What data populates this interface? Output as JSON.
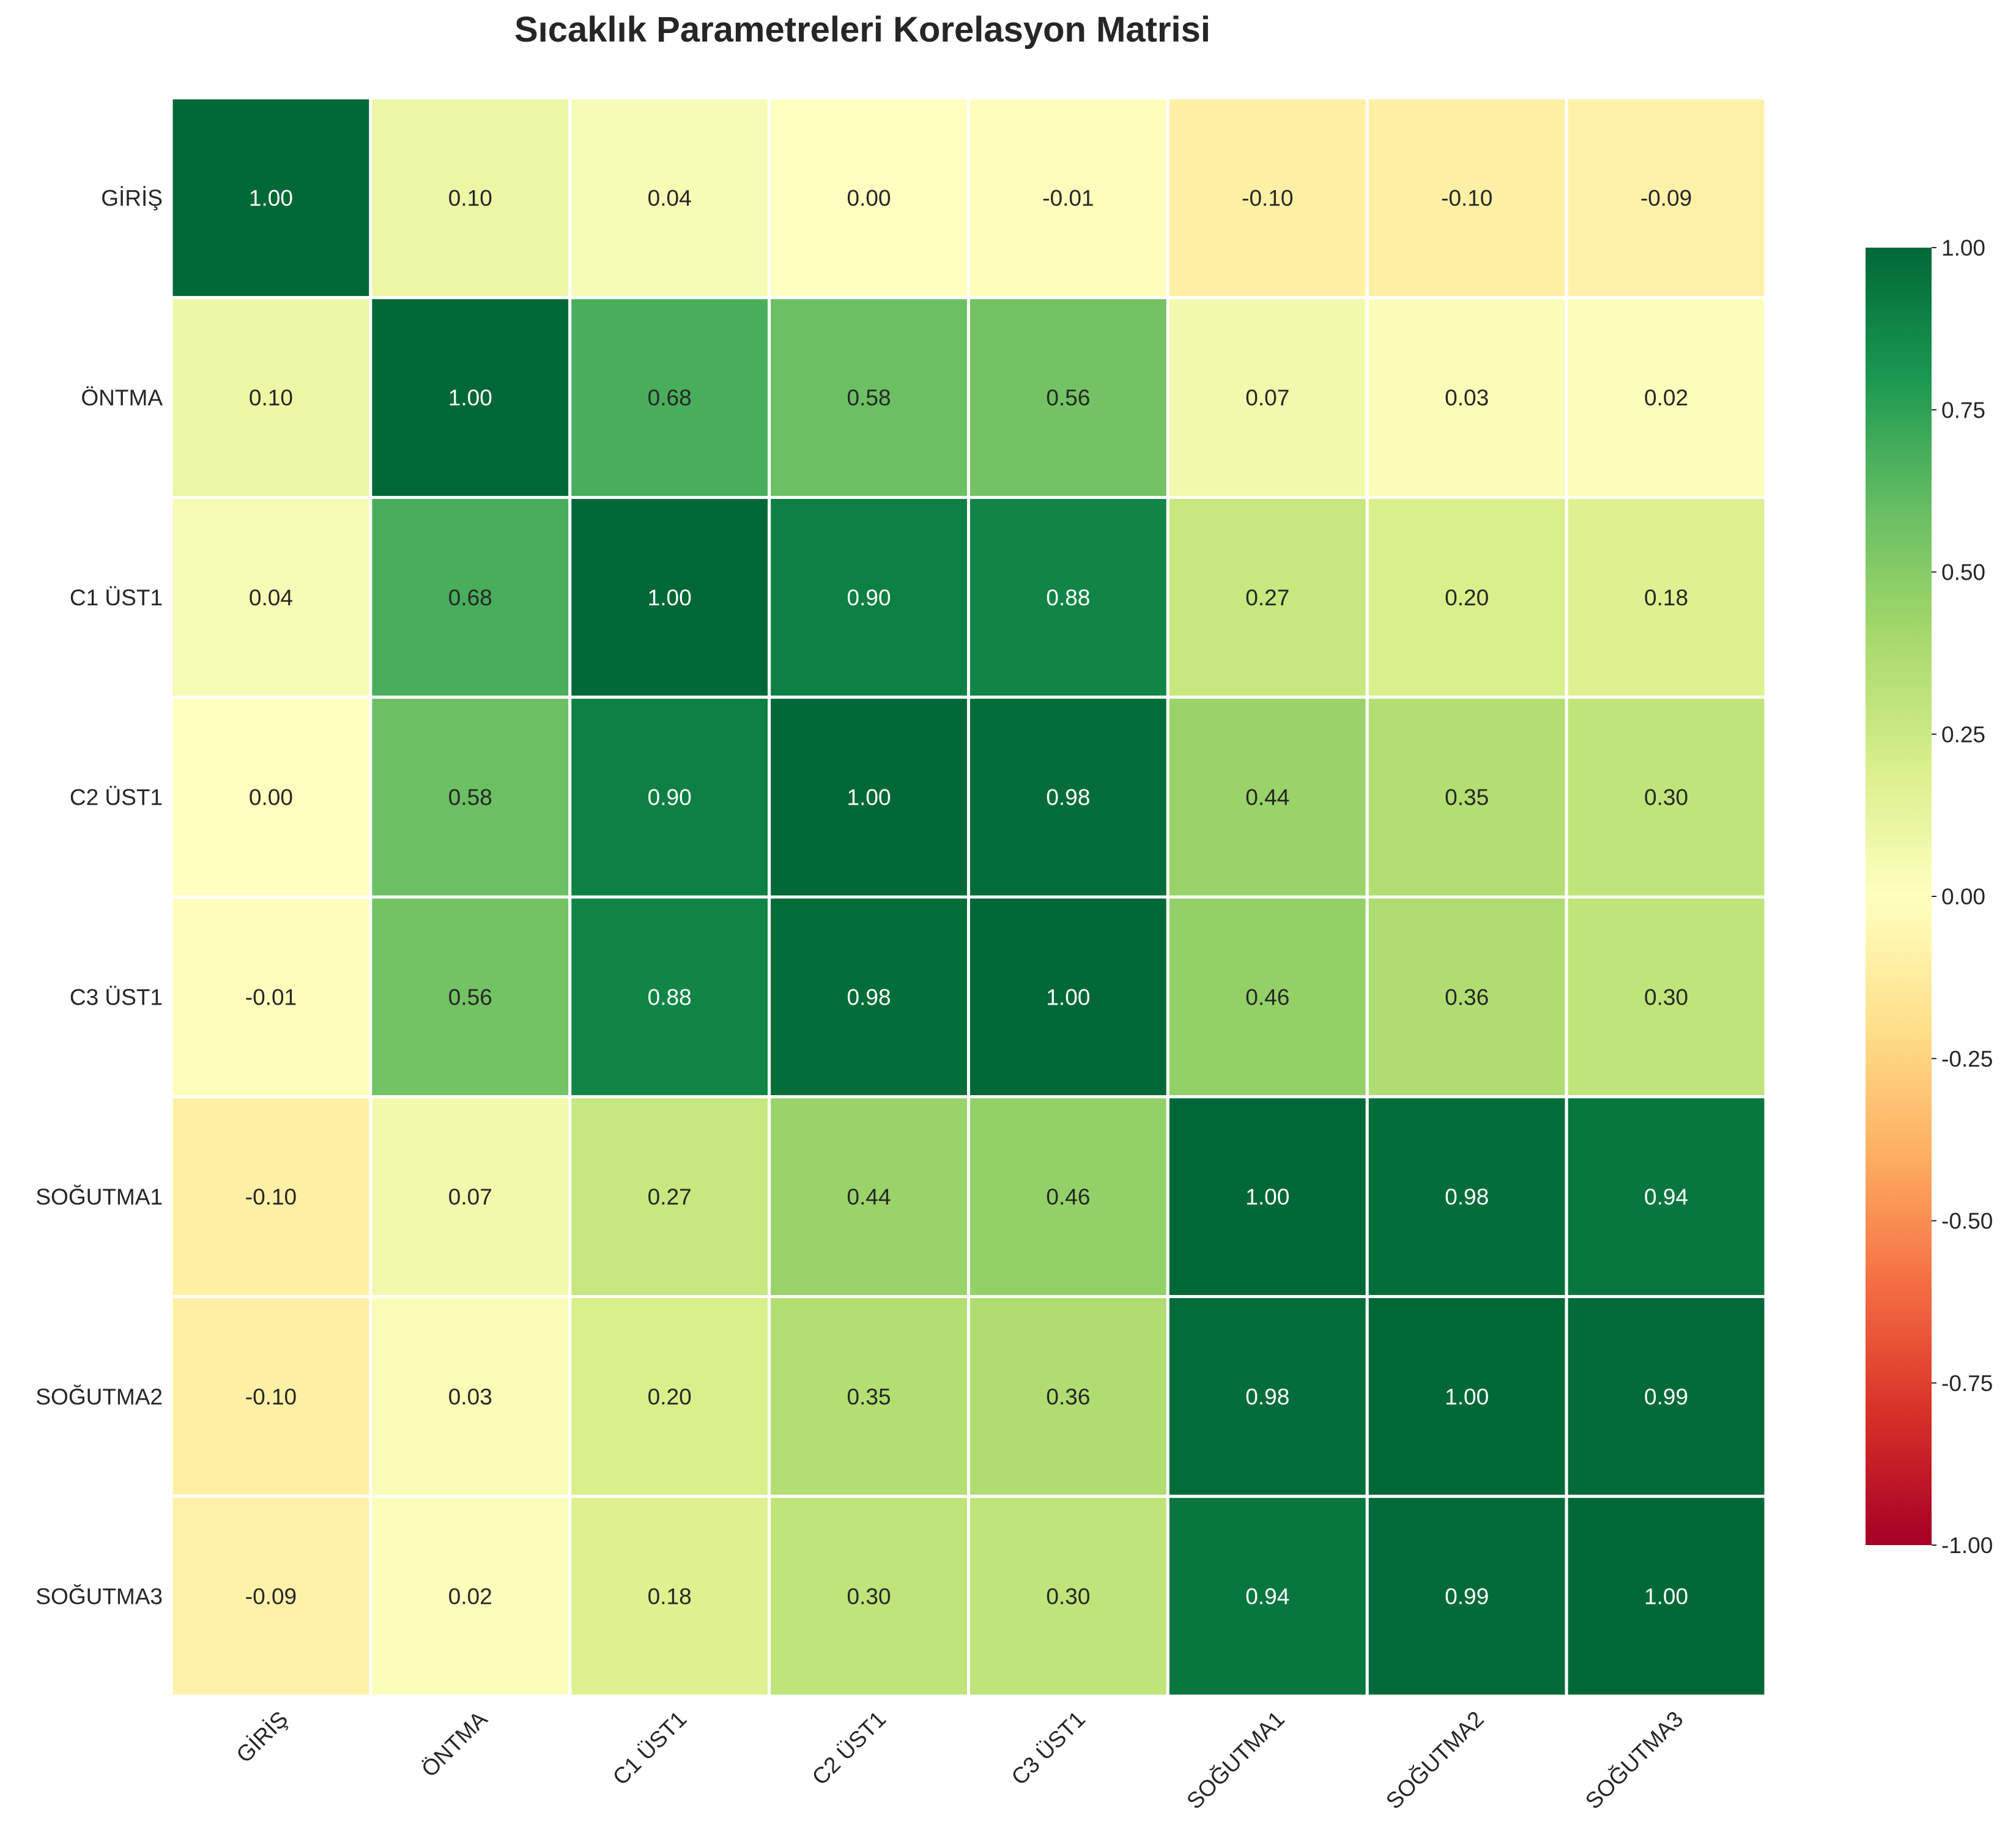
{
  "chart_data": {
    "type": "heatmap",
    "title": "Sıcaklık Parametreleri Korelasyon Matrisi",
    "xlabel": "",
    "ylabel": "",
    "row_labels": [
      "GİRİŞ",
      "ÖNTMA",
      "C1 ÜST1",
      "C2 ÜST1",
      "C3 ÜST1",
      "SOĞUTMA1",
      "SOĞUTMA2",
      "SOĞUTMA3"
    ],
    "col_labels": [
      "GİRİŞ",
      "ÖNTMA",
      "C1 ÜST1",
      "C2 ÜST1",
      "C3 ÜST1",
      "SOĞUTMA1",
      "SOĞUTMA2",
      "SOĞUTMA3"
    ],
    "values": [
      [
        1.0,
        0.1,
        0.04,
        -0.0,
        -0.01,
        -0.1,
        -0.1,
        -0.09
      ],
      [
        0.1,
        1.0,
        0.68,
        0.58,
        0.56,
        0.07,
        0.03,
        0.02
      ],
      [
        0.04,
        0.68,
        1.0,
        0.9,
        0.88,
        0.27,
        0.2,
        0.18
      ],
      [
        -0.0,
        0.58,
        0.9,
        1.0,
        0.98,
        0.44,
        0.35,
        0.3
      ],
      [
        -0.01,
        0.56,
        0.88,
        0.98,
        1.0,
        0.46,
        0.36,
        0.3
      ],
      [
        -0.1,
        0.07,
        0.27,
        0.44,
        0.46,
        1.0,
        0.98,
        0.94
      ],
      [
        -0.1,
        0.03,
        0.2,
        0.35,
        0.36,
        0.98,
        1.0,
        0.99
      ],
      [
        -0.09,
        0.02,
        0.18,
        0.3,
        0.3,
        0.94,
        0.99,
        1.0
      ]
    ],
    "value_format": "2 decimals",
    "colormap": "RdYlGn",
    "vmin": -1.0,
    "vmax": 1.0,
    "colorbar": {
      "ticks": [
        1.0,
        0.75,
        0.5,
        0.25,
        0.0,
        -0.25,
        -0.5,
        -0.75,
        -1.0
      ],
      "tick_labels": [
        "1.00",
        "0.75",
        "0.50",
        "0.25",
        "0.00",
        "-0.25",
        "-0.50",
        "-0.75",
        "-1.00"
      ],
      "placement": "right"
    },
    "grid": true,
    "grid_color": "#ffffff",
    "x_tick_rotation_deg": 45
  }
}
